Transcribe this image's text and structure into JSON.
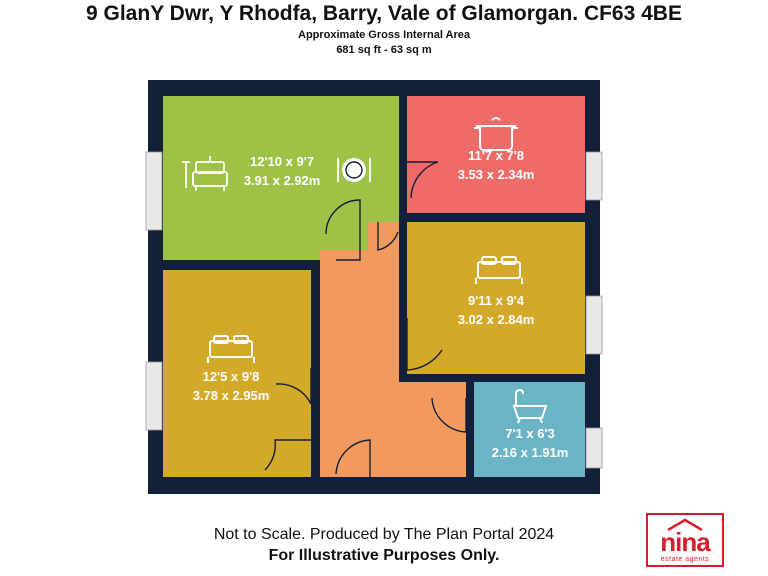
{
  "header": {
    "address": "9 GlanY Dwr, Y Rhodfa, Barry, Vale of Glamorgan. CF63 4BE",
    "area_label": "Approximate Gross Internal Area",
    "area_value": "681 sq ft - 63 sq m"
  },
  "rooms": {
    "living": {
      "imperial": "12'10 x 9'7",
      "metric": "3.91 x 2.92m",
      "color": "#9dc246"
    },
    "kitchen": {
      "imperial": "11'7 x 7'8",
      "metric": "3.53 x 2.34m",
      "color": "#ef6b68"
    },
    "bedroom1": {
      "imperial": "9'11 x 9'4",
      "metric": "3.02 x 2.84m",
      "color": "#d3a92a"
    },
    "bedroom2": {
      "imperial": "12'5 x 9'8",
      "metric": "3.78 x 2.95m",
      "color": "#d3a92a"
    },
    "bathroom": {
      "imperial": "7'1 x 6'3",
      "metric": "2.16 x 1.91m",
      "color": "#6ab4c6"
    },
    "hall": {
      "color": "#f29a5e"
    }
  },
  "colors": {
    "wall": "#13203a",
    "window": "#e8e8e8",
    "brand_red": "#d31f2c"
  },
  "footer": {
    "line1": "Not to Scale. Produced by The Plan Portal 2024",
    "line2": "For Illustrative Purposes Only."
  },
  "logo": {
    "word": "nina",
    "tagline": "estate agents"
  },
  "icons": [
    "sofa-icon",
    "plate-icon",
    "cooking-pot-icon",
    "double-bed-icon",
    "double-bed-icon",
    "bathtub-icon"
  ]
}
